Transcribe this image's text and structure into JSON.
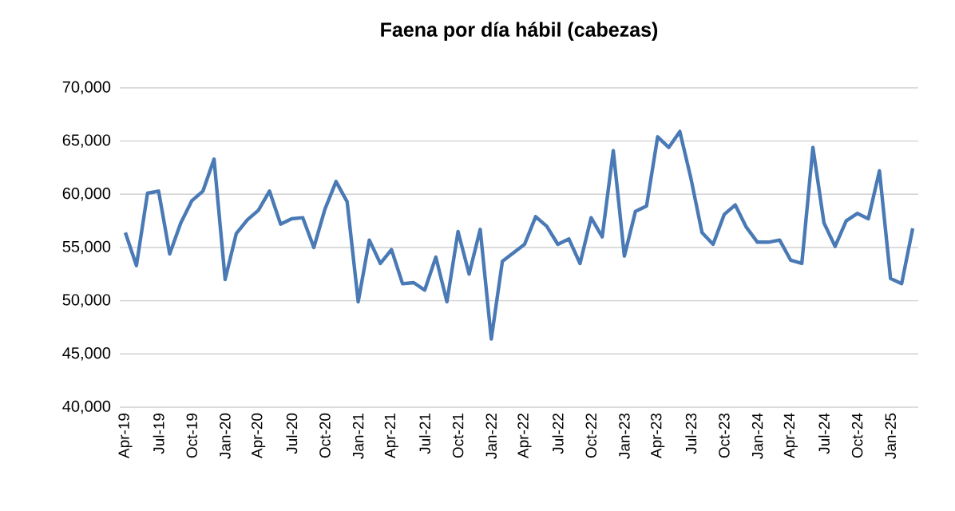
{
  "chart_data": {
    "type": "line",
    "title": "Faena por día hábil (cabezas)",
    "categories": [
      "Apr-19",
      null,
      null,
      "Jul-19",
      null,
      null,
      "Oct-19",
      null,
      null,
      "Jan-20",
      null,
      null,
      "Apr-20",
      null,
      null,
      "Jul-20",
      null,
      null,
      "Oct-20",
      null,
      null,
      "Jan-21",
      null,
      null,
      "Apr-21",
      null,
      null,
      "Jul-21",
      null,
      null,
      "Oct-21",
      null,
      null,
      "Jan-22",
      null,
      null,
      "Apr-22",
      null,
      null,
      "Jul-22",
      null,
      null,
      "Oct-22",
      null,
      null,
      "Jan-23",
      null,
      null,
      "Apr-23",
      null,
      null,
      "Jul-23",
      null,
      null,
      "Oct-23",
      null,
      null,
      "Jan-24",
      null,
      null,
      "Apr-24",
      null,
      null,
      "Jul-24",
      null,
      null,
      "Oct-24",
      null,
      null,
      "Jan-25",
      null,
      null
    ],
    "series": [
      {
        "color": "#4a7ab5",
        "values": [
          56400,
          53300,
          60100,
          60300,
          54400,
          57300,
          59400,
          60300,
          63300,
          52000,
          56300,
          57600,
          58500,
          60300,
          57200,
          57700,
          57800,
          55000,
          58600,
          61200,
          59300,
          49900,
          55700,
          53500,
          54800,
          51600,
          51700,
          51000,
          54100,
          49900,
          56500,
          52500,
          56700,
          46400,
          53700,
          54500,
          55300,
          57900,
          57000,
          55300,
          55800,
          53500,
          57800,
          56000,
          64100,
          54200,
          58400,
          58900,
          65400,
          64400,
          65900,
          61500,
          56400,
          55300,
          58100,
          59000,
          56900,
          55500,
          55500,
          55700,
          53800,
          53500,
          64400,
          57300,
          55100,
          57500,
          58200,
          57700,
          62200,
          52100,
          51600,
          56800
        ]
      }
    ],
    "ylim": [
      40000,
      70000
    ],
    "yticks": [
      {
        "value": 40000,
        "label": "40,000"
      },
      {
        "value": 45000,
        "label": "45,000"
      },
      {
        "value": 50000,
        "label": "50,000"
      },
      {
        "value": 55000,
        "label": "55,000"
      },
      {
        "value": 60000,
        "label": "60,000"
      },
      {
        "value": 65000,
        "label": "65,000"
      },
      {
        "value": 70000,
        "label": "70,000"
      }
    ],
    "grid": "y",
    "marker": "none",
    "line_style": "solid"
  }
}
